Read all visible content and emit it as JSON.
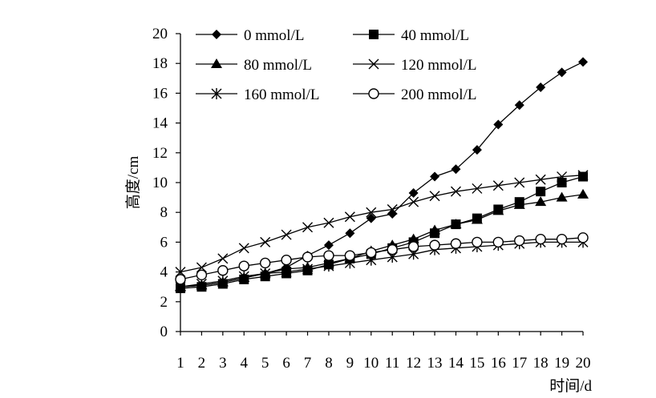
{
  "chart_data": {
    "type": "line",
    "xlabel": "时间/d",
    "ylabel": "高度/cm",
    "ylim": [
      0,
      20
    ],
    "yticks": [
      0,
      2,
      4,
      6,
      8,
      10,
      12,
      14,
      16,
      18,
      20
    ],
    "x": [
      1,
      2,
      3,
      4,
      5,
      6,
      7,
      8,
      9,
      10,
      11,
      12,
      13,
      14,
      15,
      16,
      17,
      18,
      19,
      20
    ],
    "grid": false,
    "legend_position": "top",
    "series": [
      {
        "name": "0 mmol/L",
        "marker": "diamond",
        "values": [
          3.0,
          3.1,
          3.3,
          3.6,
          3.9,
          4.3,
          5.1,
          5.8,
          6.6,
          7.6,
          7.9,
          9.3,
          10.4,
          10.9,
          12.2,
          13.9,
          15.2,
          16.4,
          17.4,
          18.1
        ]
      },
      {
        "name": "40 mmol/L",
        "marker": "square",
        "values": [
          2.9,
          3.0,
          3.2,
          3.5,
          3.7,
          3.9,
          4.1,
          4.5,
          4.9,
          5.2,
          5.6,
          6.0,
          6.6,
          7.2,
          7.6,
          8.2,
          8.7,
          9.4,
          10.0,
          10.4
        ]
      },
      {
        "name": "80 mmol/L",
        "marker": "triangle",
        "values": [
          3.0,
          3.1,
          3.3,
          3.6,
          3.9,
          4.2,
          4.3,
          4.6,
          4.9,
          5.4,
          5.8,
          6.2,
          6.8,
          7.2,
          7.5,
          8.1,
          8.5,
          8.7,
          9.0,
          9.2
        ]
      },
      {
        "name": "120 mmol/L",
        "marker": "x",
        "values": [
          4.0,
          4.3,
          4.9,
          5.6,
          6.0,
          6.5,
          7.0,
          7.3,
          7.7,
          8.0,
          8.2,
          8.7,
          9.1,
          9.4,
          9.6,
          9.8,
          10.0,
          10.2,
          10.4,
          10.5
        ]
      },
      {
        "name": "160 mmol/L",
        "marker": "asterisk",
        "values": [
          3.0,
          3.2,
          3.4,
          3.7,
          3.9,
          4.0,
          4.2,
          4.4,
          4.6,
          4.8,
          5.0,
          5.2,
          5.5,
          5.6,
          5.7,
          5.8,
          5.9,
          6.0,
          6.0,
          6.0
        ]
      },
      {
        "name": "200 mmol/L",
        "marker": "circle",
        "values": [
          3.5,
          3.8,
          4.1,
          4.4,
          4.6,
          4.8,
          5.0,
          5.1,
          5.1,
          5.3,
          5.5,
          5.7,
          5.8,
          5.9,
          6.0,
          6.0,
          6.1,
          6.2,
          6.2,
          6.3
        ]
      }
    ]
  }
}
